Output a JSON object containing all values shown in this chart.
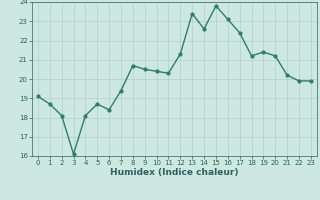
{
  "x": [
    0,
    1,
    2,
    3,
    4,
    5,
    6,
    7,
    8,
    9,
    10,
    11,
    12,
    13,
    14,
    15,
    16,
    17,
    18,
    19,
    20,
    21,
    22,
    23
  ],
  "y": [
    19.1,
    18.7,
    18.1,
    16.1,
    18.1,
    18.7,
    18.4,
    19.4,
    20.7,
    20.5,
    20.4,
    20.3,
    21.3,
    23.4,
    22.6,
    23.8,
    23.1,
    22.4,
    21.2,
    21.4,
    21.2,
    20.2,
    19.9,
    19.9
  ],
  "ylim": [
    16,
    24
  ],
  "yticks": [
    16,
    17,
    18,
    19,
    20,
    21,
    22,
    23,
    24
  ],
  "xlim": [
    -0.5,
    23.5
  ],
  "xticks": [
    0,
    1,
    2,
    3,
    4,
    5,
    6,
    7,
    8,
    9,
    10,
    11,
    12,
    13,
    14,
    15,
    16,
    17,
    18,
    19,
    20,
    21,
    22,
    23
  ],
  "xlabel": "Humidex (Indice chaleur)",
  "line_color": "#2e7d6e",
  "bg_color": "#cce8e0",
  "grid_color": "#b0d0c8",
  "tick_label_color": "#2e6060",
  "marker": "o",
  "marker_size": 2.0,
  "linewidth": 1.0
}
